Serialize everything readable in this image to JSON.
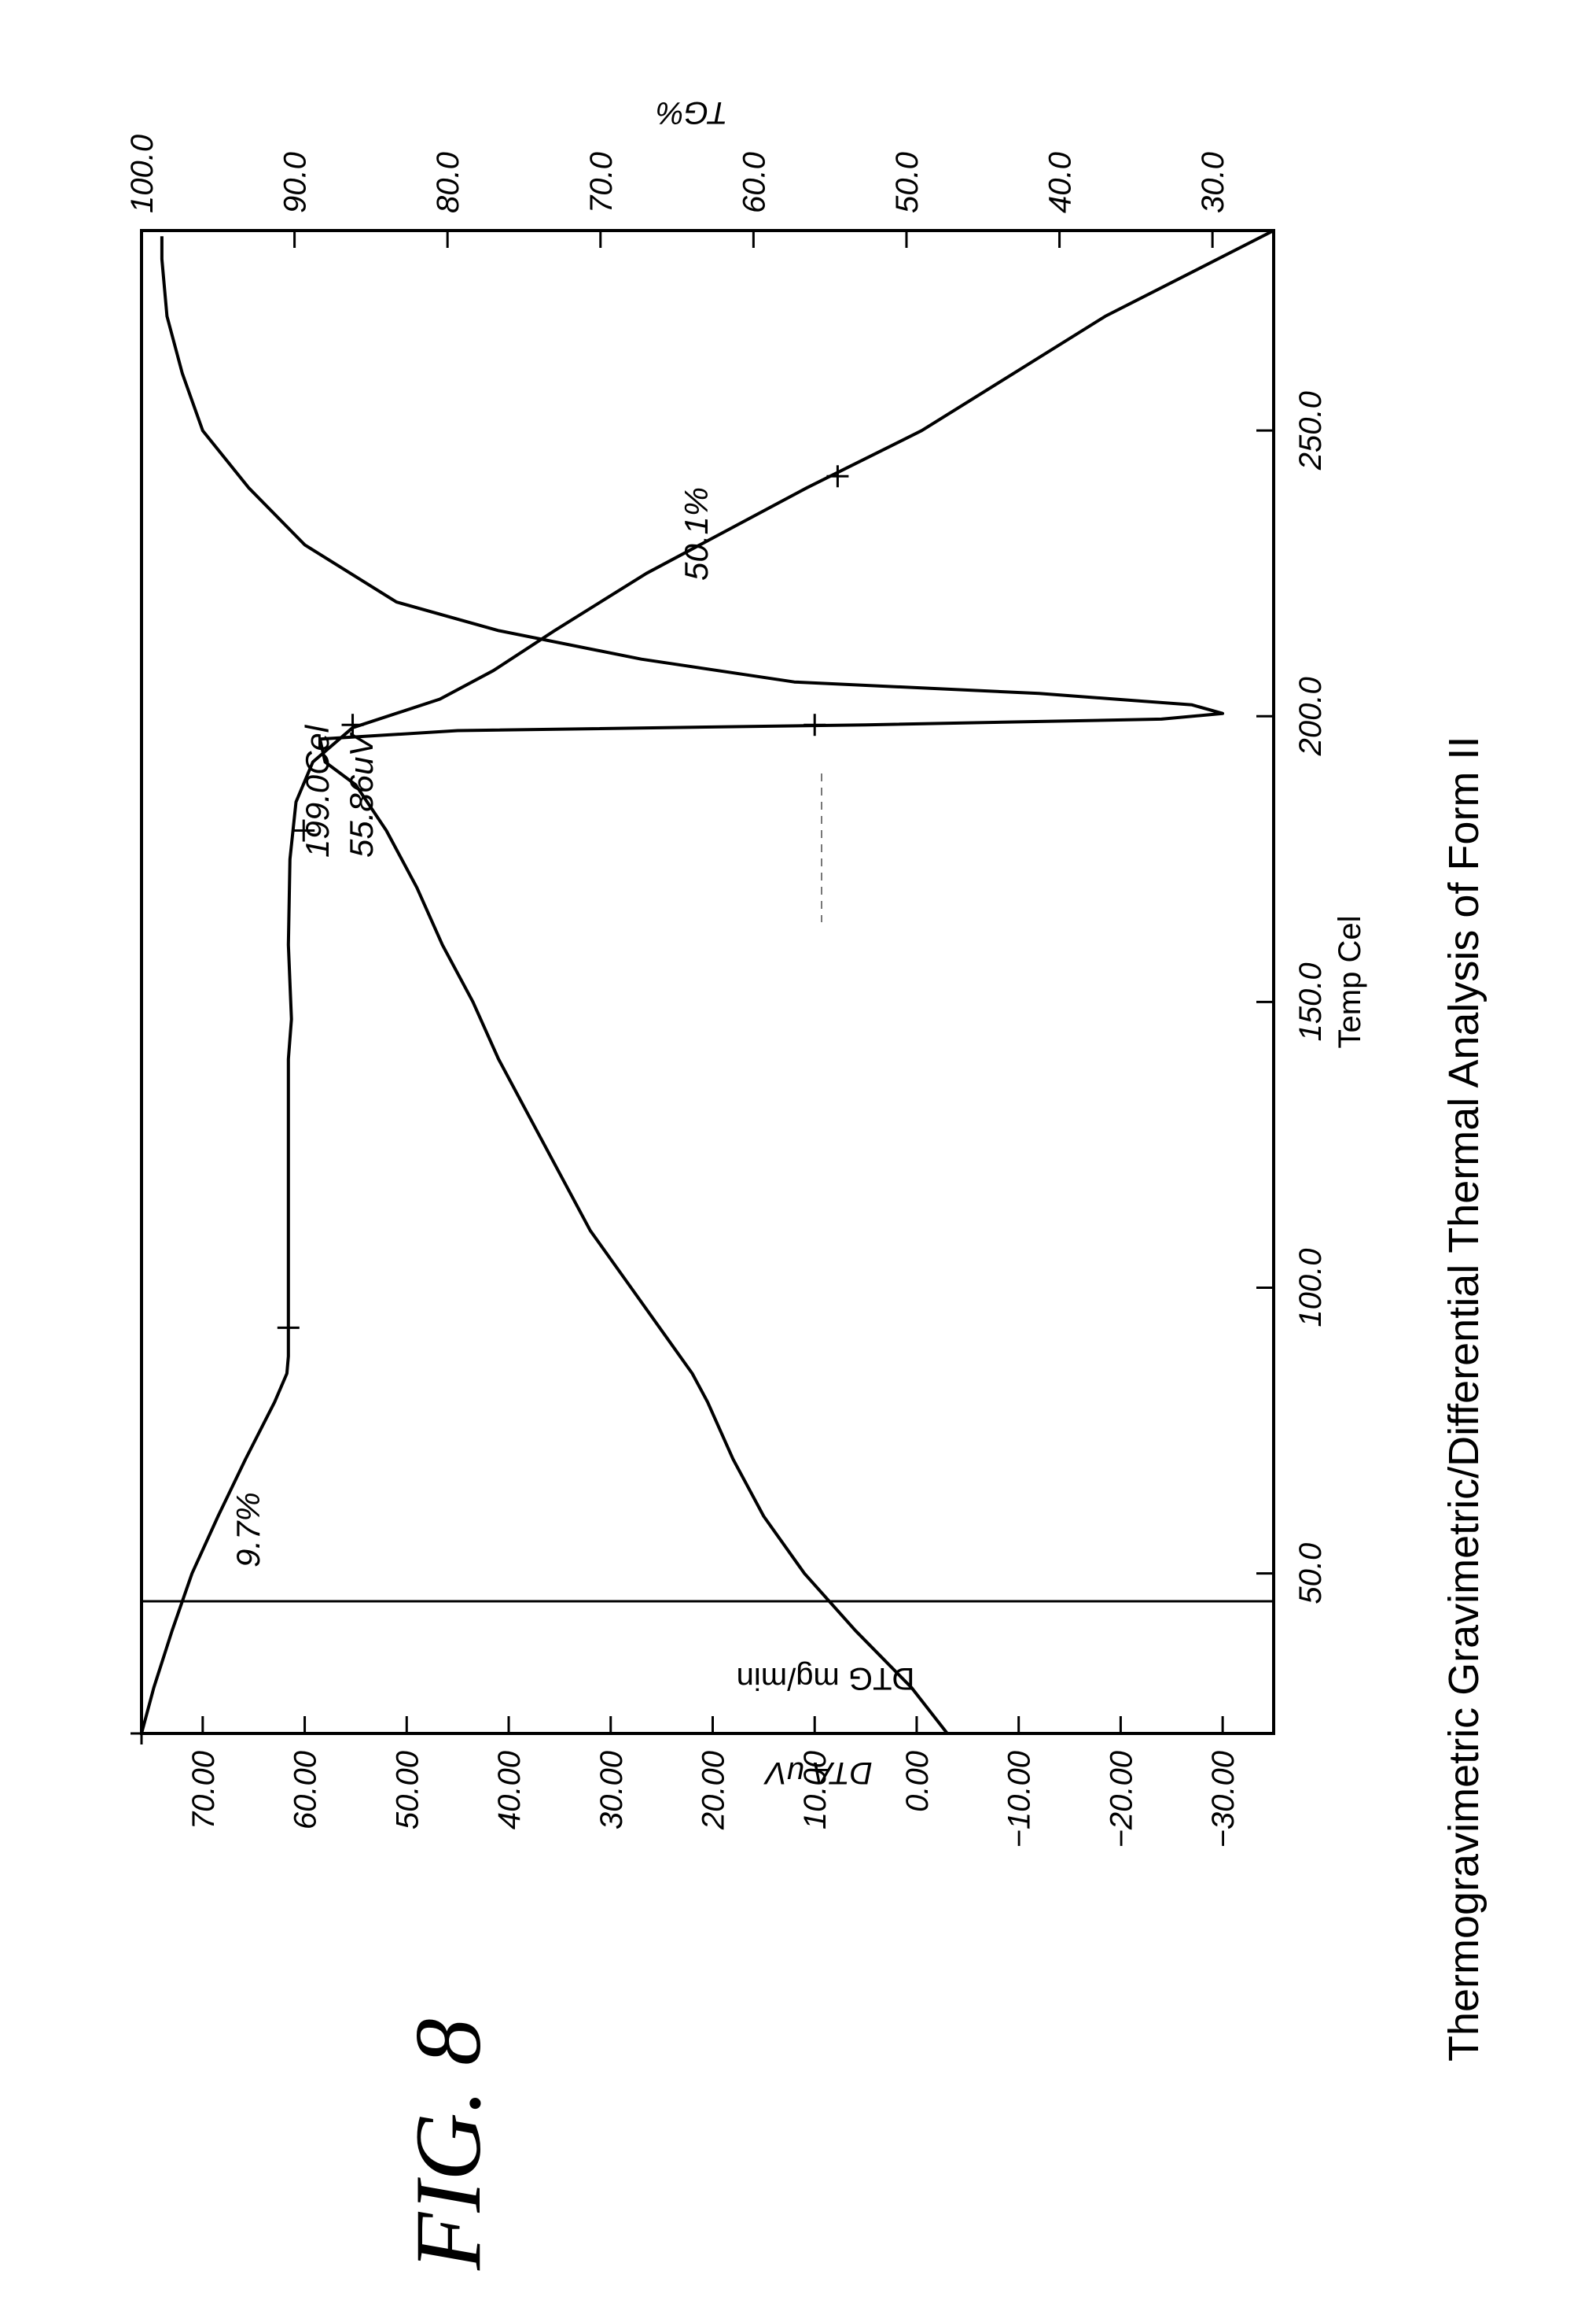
{
  "figure": {
    "label": "FIG. 8",
    "caption": "Thermogravimetric Gravimetric/Differential Thermal Analysis of Form II"
  },
  "chart_data": {
    "type": "line",
    "x_axis": {
      "label": "Temp Cel",
      "range": [
        22,
        285
      ],
      "ticks": [
        50,
        100,
        150,
        200,
        250
      ],
      "tick_labels": [
        "50.0",
        "100.0",
        "150.0",
        "200.0",
        "250.0"
      ]
    },
    "y_axis_left": {
      "label": "DTA uV",
      "range": [
        -35,
        76
      ],
      "ticks": [
        70,
        60,
        50,
        40,
        30,
        20,
        10,
        0,
        -10,
        -20,
        -30
      ],
      "tick_labels": [
        "70.00",
        "60.00",
        "50.00",
        "40.00",
        "30.00",
        "20.00",
        "10.00",
        "0.00",
        "−10.00",
        "−20.00",
        "−30.00"
      ]
    },
    "y_axis_right": {
      "label": "TG%",
      "range": [
        26,
        100
      ],
      "ticks": [
        100,
        90,
        80,
        70,
        60,
        50,
        40,
        30
      ],
      "tick_labels": [
        "100.0",
        "90.0",
        "80.0",
        "70.0",
        "60.0",
        "50.0",
        "40.0",
        "30.0"
      ]
    },
    "extra_label": "DTG mg/min",
    "series": [
      {
        "axis": "right",
        "x": [
          22,
          30,
          40,
          50,
          60,
          70,
          80,
          85,
          88,
          90,
          100,
          120,
          140,
          147,
          160,
          175,
          185,
          192,
          198,
          203,
          208,
          215,
          225,
          240,
          250,
          260,
          270,
          285
        ],
        "y": [
          100,
          99.2,
          98,
          96.7,
          95,
          93.2,
          91.3,
          90.5,
          90.4,
          90.4,
          90.4,
          90.4,
          90.4,
          90.2,
          90.4,
          90.3,
          89.9,
          88.8,
          86.2,
          80.5,
          77,
          73,
          67,
          56.5,
          49,
          43,
          37,
          26
        ]
      },
      {
        "axis": "left",
        "x": [
          22,
          30,
          40,
          50,
          60,
          70,
          80,
          85,
          90,
          100,
          110,
          120,
          130,
          140,
          150,
          160,
          170,
          180,
          188,
          192,
          196,
          197.5,
          198.5,
          199.5,
          200.5,
          202,
          204,
          206,
          210,
          215,
          220,
          230,
          240,
          250,
          260,
          270,
          280,
          284
        ],
        "y": [
          -3,
          0.5,
          6,
          11,
          15,
          18,
          20.5,
          22,
          24,
          28,
          32,
          35,
          38,
          41,
          43.5,
          46.5,
          49,
          52,
          55,
          58,
          58.5,
          45,
          5,
          -24,
          -30,
          -27,
          -12,
          12,
          27,
          41,
          51,
          60,
          65.5,
          70,
          72,
          73.5,
          74,
          74
        ]
      }
    ],
    "markers": [
      {
        "x": 22,
        "y": 100,
        "axis": "right"
      },
      {
        "x": 93,
        "y": 90.4,
        "axis": "right"
      },
      {
        "x": 180,
        "y": 89.4,
        "axis": "right"
      },
      {
        "x": 198.5,
        "y": 86.2,
        "axis": "right"
      },
      {
        "x": 198.5,
        "y": 10,
        "axis": "left"
      },
      {
        "x": 242,
        "y": 54.5,
        "axis": "right"
      }
    ],
    "annotations": [
      {
        "text": "9.7%"
      },
      {
        "text": "199.0Cel"
      },
      {
        "text": "55.86uV"
      },
      {
        "text": "50.1%"
      }
    ]
  }
}
